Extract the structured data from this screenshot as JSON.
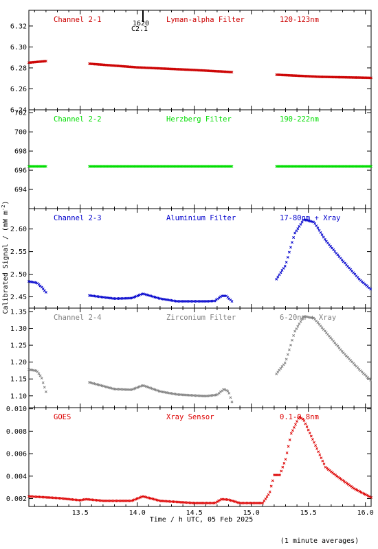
{
  "figure": {
    "xlabel": "Time / h UTC, 05 Feb 2025",
    "ylabel": "Calibrated Signal / (mW m",
    "ylabel_sup": "-2",
    "ylabel_close": ")",
    "footnote": "(1 minute averages)",
    "marker": {
      "label_top": "1620",
      "label_bottom": "C2.1",
      "x": 14.05
    }
  },
  "chart_data": [
    {
      "type": "scatter",
      "channel": "Channel 2-1",
      "filter": "Lyman-alpha Filter",
      "band": "120-123nm",
      "color": "#cc0000",
      "xlim": [
        13.05,
        16.05
      ],
      "ylim": [
        6.24,
        6.335
      ],
      "yticks": [
        "6.24",
        "6.26",
        "6.28",
        "6.30",
        "6.32"
      ],
      "yticks_num": [
        6.24,
        6.26,
        6.28,
        6.3,
        6.32
      ],
      "segments": [
        [
          13.05,
          13.2
        ],
        [
          13.58,
          14.83
        ],
        [
          15.22,
          16.05
        ]
      ],
      "anchors": [
        [
          13.05,
          6.285
        ],
        [
          13.2,
          6.2865
        ],
        [
          13.58,
          6.284
        ],
        [
          14.0,
          6.2805
        ],
        [
          14.5,
          6.278
        ],
        [
          14.83,
          6.276
        ],
        [
          15.22,
          6.2735
        ],
        [
          15.6,
          6.2715
        ],
        [
          16.05,
          6.2705
        ]
      ]
    },
    {
      "type": "scatter",
      "channel": "Channel 2-2",
      "filter": "Herzberg Filter",
      "band": "190-222nm",
      "color": "#00dd00",
      "xlim": [
        13.05,
        16.05
      ],
      "ylim": [
        692.0,
        702.3
      ],
      "yticks": [
        "694",
        "696",
        "698",
        "700",
        "702"
      ],
      "yticks_num": [
        694,
        696,
        698,
        700,
        702
      ],
      "segments": [
        [
          13.05,
          13.2
        ],
        [
          13.58,
          14.83
        ],
        [
          15.22,
          16.05
        ]
      ],
      "anchors": [
        [
          13.05,
          696.4
        ],
        [
          16.05,
          696.4
        ]
      ]
    },
    {
      "type": "scatter",
      "channel": "Channel 2-3",
      "filter": "Aluminium Filter",
      "band": "17-80nm + Xray",
      "color": "#0000cc",
      "xlim": [
        13.05,
        16.05
      ],
      "ylim": [
        2.425,
        2.645
      ],
      "yticks": [
        "2.45",
        "2.50",
        "2.55",
        "2.60"
      ],
      "yticks_num": [
        2.45,
        2.5,
        2.55,
        2.6
      ],
      "segments": [
        [
          13.05,
          13.2
        ],
        [
          13.58,
          14.83
        ],
        [
          15.22,
          16.05
        ]
      ],
      "anchors": [
        [
          13.05,
          2.484
        ],
        [
          13.12,
          2.481
        ],
        [
          13.16,
          2.472
        ],
        [
          13.2,
          2.46
        ],
        [
          13.58,
          2.453
        ],
        [
          13.8,
          2.446
        ],
        [
          13.95,
          2.447
        ],
        [
          14.05,
          2.457
        ],
        [
          14.2,
          2.446
        ],
        [
          14.35,
          2.44
        ],
        [
          14.6,
          2.44
        ],
        [
          14.68,
          2.441
        ],
        [
          14.74,
          2.452
        ],
        [
          14.78,
          2.452
        ],
        [
          14.83,
          2.44
        ],
        [
          15.22,
          2.489
        ],
        [
          15.3,
          2.52
        ],
        [
          15.38,
          2.59
        ],
        [
          15.46,
          2.621
        ],
        [
          15.55,
          2.615
        ],
        [
          15.65,
          2.575
        ],
        [
          15.8,
          2.53
        ],
        [
          15.95,
          2.488
        ],
        [
          16.05,
          2.466
        ]
      ]
    },
    {
      "type": "scatter",
      "channel": "Channel 2-4",
      "filter": "Zirconium Filter",
      "band": "6-20nm + Xray",
      "color": "#808080",
      "xlim": [
        13.05,
        16.05
      ],
      "ylim": [
        1.065,
        1.36
      ],
      "yticks": [
        "1.10",
        "1.15",
        "1.20",
        "1.25",
        "1.30",
        "1.35"
      ],
      "yticks_num": [
        1.1,
        1.15,
        1.2,
        1.25,
        1.3,
        1.35
      ],
      "segments": [
        [
          13.05,
          13.2
        ],
        [
          13.58,
          14.83
        ],
        [
          15.22,
          16.05
        ]
      ],
      "anchors": [
        [
          13.05,
          1.178
        ],
        [
          13.12,
          1.174
        ],
        [
          13.16,
          1.155
        ],
        [
          13.2,
          1.112
        ],
        [
          13.58,
          1.14
        ],
        [
          13.8,
          1.12
        ],
        [
          13.95,
          1.118
        ],
        [
          14.05,
          1.131
        ],
        [
          14.2,
          1.113
        ],
        [
          14.35,
          1.104
        ],
        [
          14.6,
          1.099
        ],
        [
          14.7,
          1.103
        ],
        [
          14.76,
          1.12
        ],
        [
          14.8,
          1.113
        ],
        [
          14.83,
          1.082
        ],
        [
          15.22,
          1.165
        ],
        [
          15.3,
          1.2
        ],
        [
          15.38,
          1.29
        ],
        [
          15.46,
          1.336
        ],
        [
          15.55,
          1.33
        ],
        [
          15.65,
          1.29
        ],
        [
          15.8,
          1.23
        ],
        [
          15.95,
          1.177
        ],
        [
          16.05,
          1.145
        ]
      ]
    },
    {
      "type": "scatter",
      "channel": "GOES",
      "filter": "Xray Sensor",
      "band": "0.1-0.8nm",
      "color": "#dd0000",
      "xlim": [
        13.05,
        16.05
      ],
      "ylim": [
        0.0013,
        0.0101
      ],
      "yticks": [
        "0.002",
        "0.004",
        "0.006",
        "0.008",
        "0.010"
      ],
      "yticks_num": [
        0.002,
        0.004,
        0.006,
        0.008,
        0.01
      ],
      "segments": [
        [
          13.05,
          16.05
        ]
      ],
      "anchors": [
        [
          13.05,
          0.0022
        ],
        [
          13.3,
          0.00205
        ],
        [
          13.5,
          0.00185
        ],
        [
          13.55,
          0.00195
        ],
        [
          13.7,
          0.0018
        ],
        [
          13.95,
          0.0018
        ],
        [
          14.05,
          0.0022
        ],
        [
          14.2,
          0.0018
        ],
        [
          14.5,
          0.0016
        ],
        [
          14.68,
          0.0016
        ],
        [
          14.74,
          0.00195
        ],
        [
          14.8,
          0.0019
        ],
        [
          14.9,
          0.0016
        ],
        [
          15.1,
          0.0016
        ],
        [
          15.16,
          0.0025
        ],
        [
          15.2,
          0.0041
        ],
        [
          15.25,
          0.0041
        ],
        [
          15.3,
          0.0055
        ],
        [
          15.35,
          0.0078
        ],
        [
          15.42,
          0.0093
        ],
        [
          15.46,
          0.009
        ],
        [
          15.55,
          0.007
        ],
        [
          15.65,
          0.0048
        ],
        [
          15.75,
          0.004
        ],
        [
          15.9,
          0.0029
        ],
        [
          16.05,
          0.0021
        ]
      ]
    }
  ],
  "xaxis": {
    "ticks": [
      "13.5",
      "14.0",
      "14.5",
      "15.0",
      "15.5",
      "16.0"
    ],
    "ticks_num": [
      13.5,
      14.0,
      14.5,
      15.0,
      15.5,
      16.0
    ],
    "minor_step": 0.1
  }
}
